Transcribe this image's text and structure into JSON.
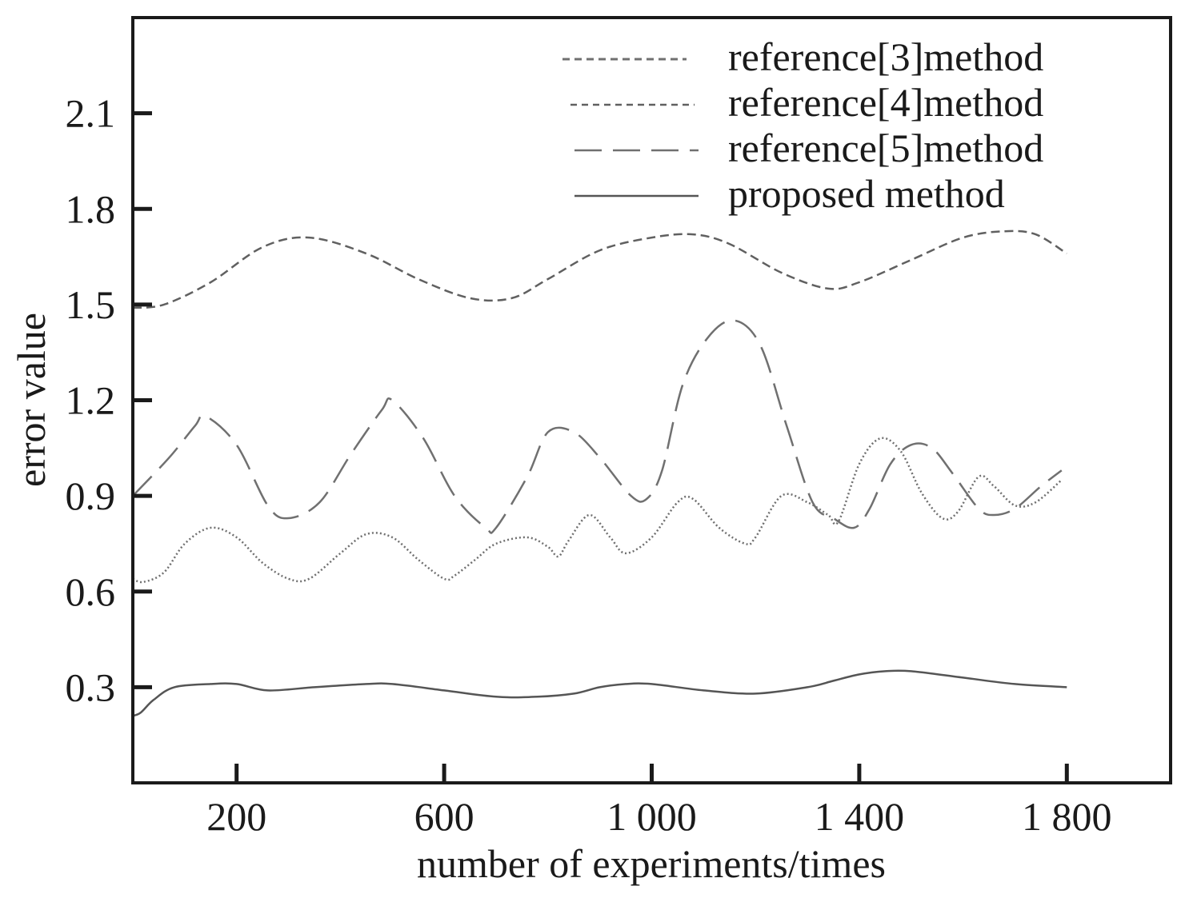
{
  "chart_data": {
    "type": "line",
    "xlabel": "number of experiments/times",
    "ylabel": "error value",
    "xlim": [
      0,
      2000
    ],
    "ylim": [
      0.0,
      2.4
    ],
    "grid": false,
    "legend_position": "top-right",
    "x_ticks": [
      {
        "value": 200,
        "label": "200"
      },
      {
        "value": 600,
        "label": "600"
      },
      {
        "value": 1000,
        "label": "1 000"
      },
      {
        "value": 1400,
        "label": "1 400"
      },
      {
        "value": 1800,
        "label": "1 800"
      }
    ],
    "y_ticks": [
      {
        "value": 0.3,
        "label": "0.3"
      },
      {
        "value": 0.6,
        "label": "0.6"
      },
      {
        "value": 0.9,
        "label": "0.9"
      },
      {
        "value": 1.2,
        "label": "1.2"
      },
      {
        "value": 1.5,
        "label": "1.5"
      },
      {
        "value": 1.8,
        "label": "1.8"
      },
      {
        "value": 2.1,
        "label": "2.1"
      }
    ],
    "series": [
      {
        "name": "reference[3]method",
        "style": "dotted",
        "color": "#707070",
        "x": [
          0,
          20,
          60,
          100,
          150,
          200,
          250,
          300,
          340,
          400,
          450,
          500,
          550,
          600,
          620,
          660,
          700,
          760,
          800,
          820,
          840,
          880,
          920,
          950,
          1000,
          1050,
          1080,
          1130,
          1180,
          1200,
          1250,
          1300,
          1340,
          1360,
          1400,
          1440,
          1480,
          1520,
          1560,
          1590,
          1630,
          1660,
          1700,
          1740,
          1790
        ],
        "y": [
          0.64,
          0.63,
          0.66,
          0.75,
          0.8,
          0.77,
          0.69,
          0.64,
          0.64,
          0.72,
          0.78,
          0.77,
          0.7,
          0.64,
          0.65,
          0.7,
          0.75,
          0.77,
          0.74,
          0.71,
          0.76,
          0.84,
          0.77,
          0.72,
          0.77,
          0.88,
          0.89,
          0.8,
          0.75,
          0.77,
          0.9,
          0.88,
          0.84,
          0.82,
          1.0,
          1.08,
          1.04,
          0.91,
          0.83,
          0.85,
          0.96,
          0.93,
          0.87,
          0.88,
          0.95
        ]
      },
      {
        "name": "reference[4]method",
        "style": "dashed-short",
        "color": "#606060",
        "x": [
          0,
          60,
          150,
          250,
          340,
          450,
          550,
          650,
          730,
          800,
          900,
          1000,
          1080,
          1150,
          1250,
          1340,
          1400,
          1500,
          1600,
          1680,
          1740,
          1800
        ],
        "y": [
          1.49,
          1.5,
          1.57,
          1.68,
          1.71,
          1.66,
          1.58,
          1.52,
          1.52,
          1.58,
          1.67,
          1.71,
          1.72,
          1.69,
          1.6,
          1.55,
          1.57,
          1.64,
          1.71,
          1.73,
          1.72,
          1.66
        ]
      },
      {
        "name": "reference[5]method",
        "style": "dashed-long",
        "color": "#707070",
        "x": [
          0,
          70,
          120,
          140,
          200,
          260,
          300,
          360,
          420,
          480,
          500,
          560,
          620,
          680,
          700,
          760,
          800,
          850,
          900,
          960,
          990,
          1020,
          1060,
          1110,
          1160,
          1210,
          1260,
          1310,
          1350,
          1390,
          1420,
          1460,
          1500,
          1540,
          1580,
          1630,
          1660,
          1700,
          1750,
          1790
        ],
        "y": [
          0.9,
          1.02,
          1.12,
          1.15,
          1.06,
          0.87,
          0.83,
          0.88,
          1.03,
          1.17,
          1.2,
          1.08,
          0.9,
          0.8,
          0.8,
          0.96,
          1.1,
          1.1,
          1.02,
          0.9,
          0.89,
          0.98,
          1.25,
          1.4,
          1.45,
          1.37,
          1.12,
          0.88,
          0.83,
          0.8,
          0.86,
          1.0,
          1.06,
          1.05,
          0.97,
          0.86,
          0.84,
          0.86,
          0.93,
          0.98
        ]
      },
      {
        "name": "proposed method",
        "style": "solid",
        "color": "#555555",
        "x": [
          0,
          15,
          40,
          80,
          150,
          200,
          260,
          350,
          450,
          500,
          600,
          700,
          780,
          850,
          900,
          950,
          1000,
          1100,
          1200,
          1300,
          1350,
          1400,
          1450,
          1500,
          1600,
          1700,
          1800
        ],
        "y": [
          0.21,
          0.22,
          0.26,
          0.3,
          0.31,
          0.31,
          0.29,
          0.3,
          0.31,
          0.31,
          0.29,
          0.27,
          0.27,
          0.28,
          0.3,
          0.31,
          0.31,
          0.29,
          0.28,
          0.3,
          0.32,
          0.34,
          0.35,
          0.35,
          0.33,
          0.31,
          0.3
        ]
      }
    ]
  }
}
